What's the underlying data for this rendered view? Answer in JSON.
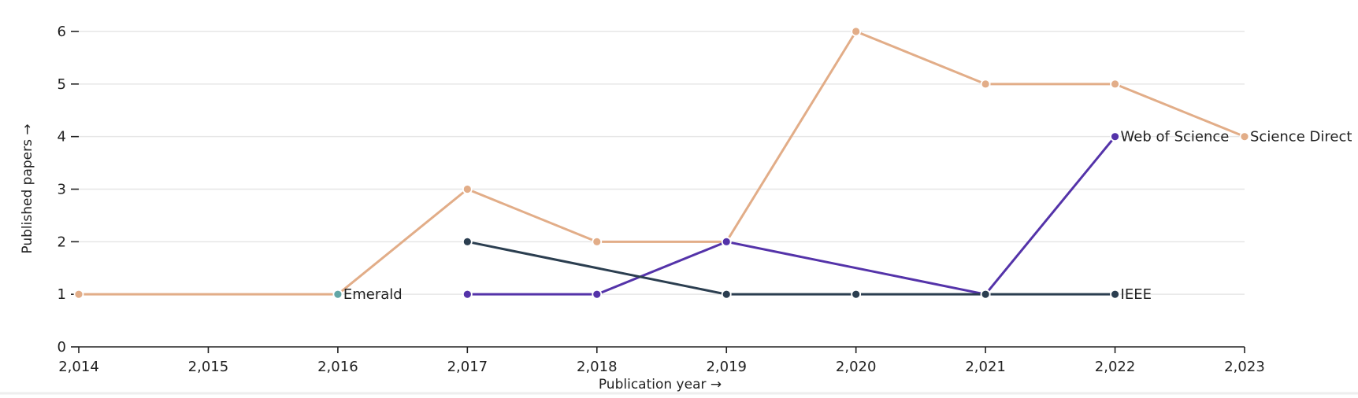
{
  "chart_data": {
    "type": "line",
    "title": "",
    "xlabel": "Publication year →",
    "ylabel": "Published papers →",
    "x_ticks": [
      "2,014",
      "2,015",
      "2,016",
      "2,017",
      "2,018",
      "2,019",
      "2,020",
      "2,021",
      "2,022",
      "2,023"
    ],
    "y_ticks": [
      "0",
      "1",
      "2",
      "3",
      "4",
      "5",
      "6"
    ],
    "xlim": [
      2014,
      2023
    ],
    "ylim": [
      0,
      6
    ],
    "grid": true,
    "series": [
      {
        "name": "Science Direct",
        "color": "#e2ad88",
        "points": [
          {
            "x": 2014,
            "y": 1
          },
          {
            "x": 2016,
            "y": 1
          },
          {
            "x": 2017,
            "y": 3
          },
          {
            "x": 2018,
            "y": 2
          },
          {
            "x": 2019,
            "y": 2
          },
          {
            "x": 2020,
            "y": 6
          },
          {
            "x": 2021,
            "y": 5
          },
          {
            "x": 2022,
            "y": 5
          },
          {
            "x": 2023,
            "y": 4
          }
        ]
      },
      {
        "name": "Web of Science",
        "color": "#5433a9",
        "points": [
          {
            "x": 2017,
            "y": 1
          },
          {
            "x": 2018,
            "y": 1
          },
          {
            "x": 2019,
            "y": 2
          },
          {
            "x": 2021,
            "y": 1
          },
          {
            "x": 2022,
            "y": 4
          }
        ]
      },
      {
        "name": "IEEE",
        "color": "#2b3e50",
        "points": [
          {
            "x": 2017,
            "y": 2
          },
          {
            "x": 2019,
            "y": 1
          },
          {
            "x": 2020,
            "y": 1
          },
          {
            "x": 2021,
            "y": 1
          },
          {
            "x": 2022,
            "y": 1
          }
        ]
      },
      {
        "name": "Emerald",
        "color": "#62a6a6",
        "points": [
          {
            "x": 2016,
            "y": 1
          }
        ]
      }
    ]
  }
}
